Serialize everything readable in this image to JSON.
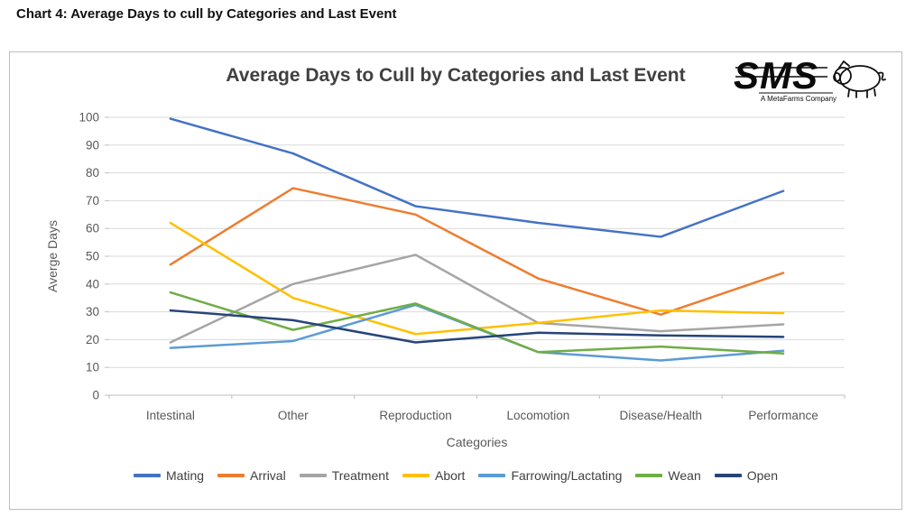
{
  "page": {
    "title": "Chart 4: Average Days to cull by Categories and Last Event"
  },
  "logo": {
    "text": "SMS",
    "caption": "A MetaFarms Company"
  },
  "chart_data": {
    "type": "line",
    "title": "Average Days to Cull by Categories and Last Event",
    "xlabel": "Categories",
    "ylabel": "Averge Days",
    "ylim": [
      0,
      100
    ],
    "ytick_step": 10,
    "grid": true,
    "legend_position": "bottom",
    "axis_ticks": [
      0,
      10,
      20,
      30,
      40,
      50,
      60,
      70,
      80,
      90,
      100
    ],
    "categories": [
      "Intestinal",
      "Other",
      "Reproduction",
      "Locomotion",
      "Disease/Health",
      "Performance"
    ],
    "series": [
      {
        "name": "Mating",
        "color": "#4472C4",
        "values": [
          99.5,
          87,
          68,
          62,
          57,
          73.5
        ]
      },
      {
        "name": "Arrival",
        "color": "#ED7D31",
        "values": [
          47,
          74.5,
          65,
          42,
          29,
          44
        ]
      },
      {
        "name": "Treatment",
        "color": "#A5A5A5",
        "values": [
          19,
          40,
          50.5,
          26,
          23,
          25.5
        ]
      },
      {
        "name": "Abort",
        "color": "#FFC000",
        "values": [
          62,
          35,
          22,
          26,
          30.5,
          29.5
        ]
      },
      {
        "name": "Farrowing/Lactating",
        "color": "#5B9BD5",
        "values": [
          17,
          19.5,
          32.5,
          15.5,
          12.5,
          16
        ]
      },
      {
        "name": "Wean",
        "color": "#70AD47",
        "values": [
          37,
          23.5,
          33,
          15.5,
          17.5,
          15
        ]
      },
      {
        "name": "Open",
        "color": "#264478",
        "values": [
          30.5,
          27,
          19,
          22.5,
          21.5,
          21
        ]
      }
    ]
  }
}
